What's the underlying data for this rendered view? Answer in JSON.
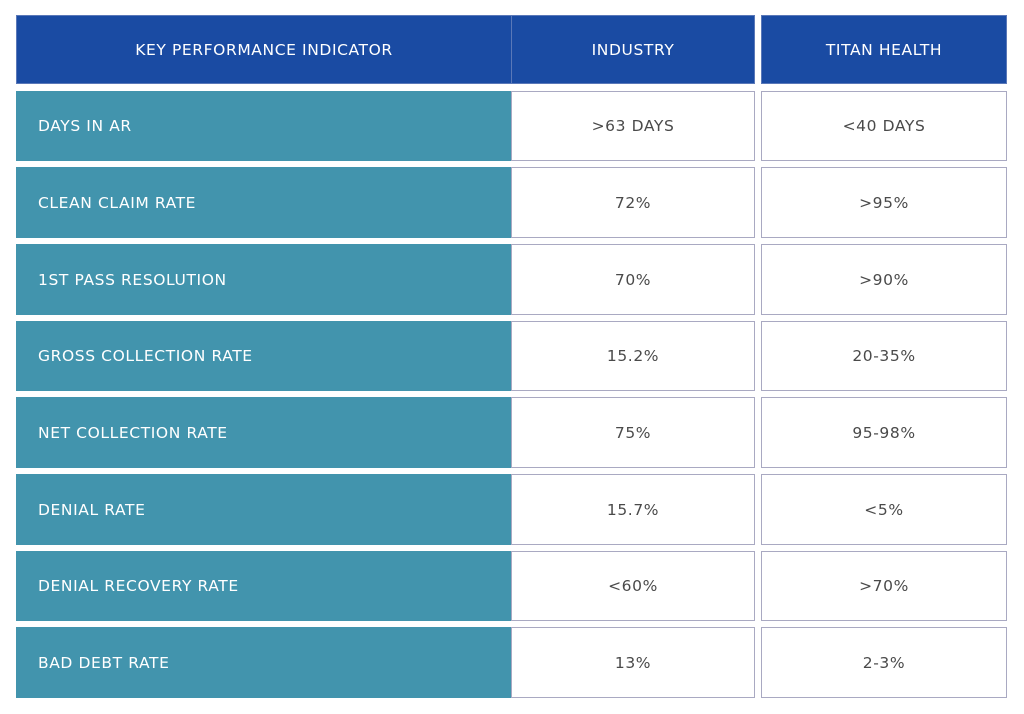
{
  "header": {
    "kpi": "KEY PERFORMANCE INDICATOR",
    "industry": "INDUSTRY",
    "titan": "TITAN HEALTH"
  },
  "rows": [
    {
      "label": "DAYS IN AR",
      "industry": ">63 DAYS",
      "titan": "<40 DAYS"
    },
    {
      "label": "CLEAN CLAIM RATE",
      "industry": "72%",
      "titan": ">95%"
    },
    {
      "label": "1ST PASS RESOLUTION",
      "industry": "70%",
      "titan": ">90%"
    },
    {
      "label": "GROSS COLLECTION RATE",
      "industry": "15.2%",
      "titan": "20-35%"
    },
    {
      "label": "NET COLLECTION RATE",
      "industry": "75%",
      "titan": "95-98%"
    },
    {
      "label": "DENIAL RATE",
      "industry": "15.7%",
      "titan": "<5%"
    },
    {
      "label": "DENIAL RECOVERY RATE",
      "industry": "<60%",
      "titan": ">70%"
    },
    {
      "label": "BAD DEBT RATE",
      "industry": "13%",
      "titan": "2-3%"
    }
  ],
  "colors": {
    "header_bg": "#1a4ba3",
    "label_bg": "#4294ad",
    "value_bg": "#ffffff",
    "value_text": "#4a4a4a"
  }
}
